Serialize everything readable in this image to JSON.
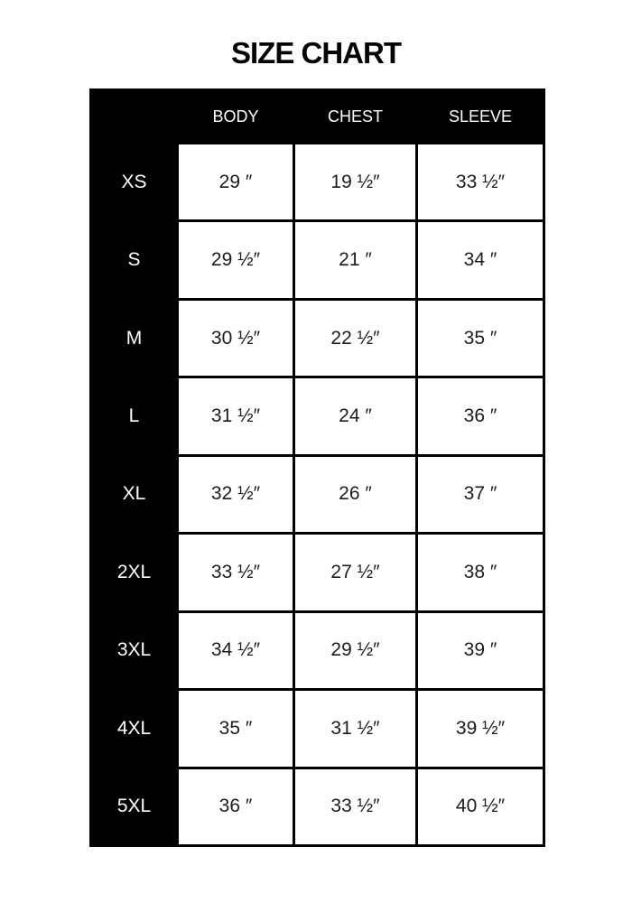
{
  "title": "SIZE CHART",
  "colors": {
    "background": "#ffffff",
    "table_fill": "#000000",
    "header_text": "#ffffff",
    "cell_fill": "#ffffff",
    "cell_text": "#1c1c1c"
  },
  "table": {
    "column_headers": [
      "BODY",
      "CHEST",
      "SLEEVE"
    ],
    "rows": [
      {
        "size": "XS",
        "body": "29 ″",
        "chest": "19 ½″",
        "sleeve": "33 ½″"
      },
      {
        "size": "S",
        "body": "29 ½″",
        "chest": "21 ″",
        "sleeve": "34 ″"
      },
      {
        "size": "M",
        "body": "30 ½″",
        "chest": "22 ½″",
        "sleeve": "35 ″"
      },
      {
        "size": "L",
        "body": "31 ½″",
        "chest": "24 ″",
        "sleeve": "36 ″"
      },
      {
        "size": "XL",
        "body": "32 ½″",
        "chest": "26 ″",
        "sleeve": "37 ″"
      },
      {
        "size": "2XL",
        "body": "33 ½″",
        "chest": "27 ½″",
        "sleeve": "38 ″"
      },
      {
        "size": "3XL",
        "body": "34 ½″",
        "chest": "29 ½″",
        "sleeve": "39 ″"
      },
      {
        "size": "4XL",
        "body": "35 ″",
        "chest": "31 ½″",
        "sleeve": "39 ½″"
      },
      {
        "size": "5XL",
        "body": "36 ″",
        "chest": "33 ½″",
        "sleeve": "40 ½″"
      }
    ]
  },
  "chart_data": {
    "type": "table",
    "title": "SIZE CHART",
    "columns": [
      "",
      "BODY",
      "CHEST",
      "SLEEVE"
    ],
    "rows": [
      [
        "XS",
        "29 ″",
        "19 ½″",
        "33 ½″"
      ],
      [
        "S",
        "29 ½″",
        "21 ″",
        "34 ″"
      ],
      [
        "M",
        "30 ½″",
        "22 ½″",
        "35 ″"
      ],
      [
        "L",
        "31 ½″",
        "24 ″",
        "36 ″"
      ],
      [
        "XL",
        "32 ½″",
        "26 ″",
        "37 ″"
      ],
      [
        "2XL",
        "33 ½″",
        "27 ½″",
        "38 ″"
      ],
      [
        "3XL",
        "34 ½″",
        "29 ½″",
        "39 ″"
      ],
      [
        "4XL",
        "35 ″",
        "31 ½″",
        "39 ½″"
      ],
      [
        "5XL",
        "36 ″",
        "33 ½″",
        "40 ½″"
      ]
    ],
    "units": "inches",
    "numeric": {
      "sizes": [
        "XS",
        "S",
        "M",
        "L",
        "XL",
        "2XL",
        "3XL",
        "4XL",
        "5XL"
      ],
      "body": [
        29,
        29.5,
        30.5,
        31.5,
        32.5,
        33.5,
        34.5,
        35,
        36
      ],
      "chest": [
        19.5,
        21,
        22.5,
        24,
        26,
        27.5,
        29.5,
        31.5,
        33.5
      ],
      "sleeve": [
        33.5,
        34,
        35,
        36,
        37,
        38,
        39,
        39.5,
        40.5
      ]
    }
  }
}
